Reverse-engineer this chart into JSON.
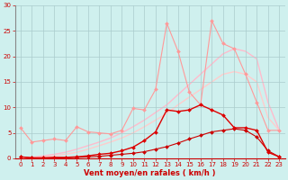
{
  "xlabel": "Vent moyen/en rafales ( km/h )",
  "bg_color": "#cff0ee",
  "grid_color": "#aacccc",
  "xlim": [
    -0.5,
    23.5
  ],
  "ylim": [
    0,
    30
  ],
  "xticks": [
    0,
    1,
    2,
    3,
    4,
    5,
    6,
    7,
    8,
    9,
    10,
    11,
    12,
    13,
    14,
    15,
    16,
    17,
    18,
    19,
    20,
    21,
    22,
    23
  ],
  "yticks": [
    0,
    5,
    10,
    15,
    20,
    25,
    30
  ],
  "line_pink_spiky": {
    "x": [
      0,
      1,
      2,
      3,
      4,
      5,
      6,
      7,
      8,
      9,
      10,
      11,
      12,
      13,
      14,
      15,
      16,
      17,
      18,
      19,
      20,
      21,
      22,
      23
    ],
    "y": [
      6.0,
      3.2,
      3.5,
      3.8,
      3.5,
      6.2,
      5.2,
      5.0,
      4.8,
      5.5,
      9.8,
      9.5,
      13.5,
      26.5,
      21.0,
      13.0,
      10.5,
      27.0,
      22.5,
      21.5,
      16.5,
      11.0,
      5.5,
      5.5
    ],
    "color": "#ff9999",
    "lw": 0.8,
    "marker": "D",
    "ms": 2.0,
    "zorder": 2
  },
  "line_pale1": {
    "x": [
      0,
      1,
      2,
      3,
      4,
      5,
      6,
      7,
      8,
      9,
      10,
      11,
      12,
      13,
      14,
      15,
      16,
      17,
      18,
      19,
      20,
      21,
      22,
      23
    ],
    "y": [
      0.0,
      0.2,
      0.5,
      0.8,
      1.2,
      1.8,
      2.5,
      3.2,
      4.0,
      5.0,
      6.2,
      7.5,
      9.0,
      10.5,
      12.5,
      14.5,
      16.5,
      18.5,
      20.5,
      21.5,
      21.0,
      19.5,
      11.0,
      5.5
    ],
    "color": "#ffbbcc",
    "lw": 1.0,
    "marker": null,
    "zorder": 1
  },
  "line_pale2": {
    "x": [
      0,
      1,
      2,
      3,
      4,
      5,
      6,
      7,
      8,
      9,
      10,
      11,
      12,
      13,
      14,
      15,
      16,
      17,
      18,
      19,
      20,
      21,
      22,
      23
    ],
    "y": [
      0.0,
      0.1,
      0.3,
      0.5,
      0.8,
      1.2,
      1.8,
      2.5,
      3.2,
      4.0,
      5.0,
      6.2,
      7.5,
      8.8,
      10.5,
      12.0,
      13.5,
      15.0,
      16.5,
      17.0,
      16.5,
      15.0,
      8.0,
      5.5
    ],
    "color": "#ffcccc",
    "lw": 1.0,
    "marker": null,
    "zorder": 1
  },
  "line_red_main": {
    "x": [
      0,
      1,
      2,
      3,
      4,
      5,
      6,
      7,
      8,
      9,
      10,
      11,
      12,
      13,
      14,
      15,
      16,
      17,
      18,
      19,
      20,
      21,
      22,
      23
    ],
    "y": [
      0.3,
      0.1,
      0.1,
      0.2,
      0.2,
      0.3,
      0.5,
      0.8,
      1.0,
      1.5,
      2.2,
      3.5,
      5.2,
      9.5,
      9.2,
      9.5,
      10.5,
      9.5,
      8.5,
      6.0,
      6.0,
      5.5,
      1.2,
      0.3
    ],
    "color": "#dd0000",
    "lw": 1.0,
    "marker": "D",
    "ms": 2.0,
    "zorder": 4
  },
  "line_red_flat": {
    "x": [
      0,
      1,
      2,
      3,
      4,
      5,
      6,
      7,
      8,
      9,
      10,
      11,
      12,
      13,
      14,
      15,
      16,
      17,
      18,
      19,
      20,
      21,
      22,
      23
    ],
    "y": [
      0.3,
      0.1,
      0.1,
      0.1,
      0.1,
      0.2,
      0.3,
      0.4,
      0.6,
      0.8,
      1.0,
      1.3,
      1.8,
      2.3,
      3.0,
      3.8,
      4.5,
      5.2,
      5.5,
      5.8,
      5.5,
      4.2,
      1.5,
      0.3
    ],
    "color": "#cc0000",
    "lw": 0.8,
    "marker": "D",
    "ms": 2.0,
    "zorder": 3
  }
}
